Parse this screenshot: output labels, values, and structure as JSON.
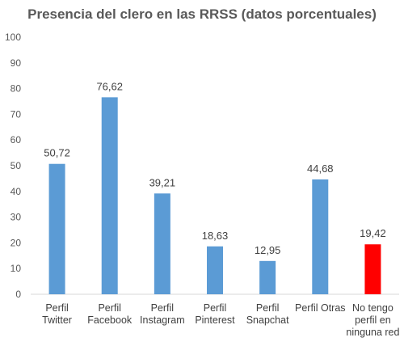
{
  "chart_data": {
    "type": "bar",
    "title": "Presencia del clero en las RRSS (datos porcentuales)",
    "categories": [
      [
        "Perfil",
        "Twitter"
      ],
      [
        "Perfil",
        "Facebook"
      ],
      [
        "Perfil",
        "Instagram"
      ],
      [
        "Perfil",
        "Pinterest"
      ],
      [
        "Perfil",
        "Snapchat"
      ],
      [
        "Perfil Otras"
      ],
      [
        "No tengo",
        "perfil en",
        "ninguna red"
      ]
    ],
    "values": [
      50.72,
      76.62,
      39.21,
      18.63,
      12.95,
      44.68,
      19.42
    ],
    "data_labels": [
      "50,72",
      "76,62",
      "39,21",
      "18,63",
      "12,95",
      "44,68",
      "19,42"
    ],
    "colors": [
      "#5b9bd5",
      "#5b9bd5",
      "#5b9bd5",
      "#5b9bd5",
      "#5b9bd5",
      "#5b9bd5",
      "#ff0000"
    ],
    "ylim": [
      0,
      100
    ],
    "yticks": [
      0,
      10,
      20,
      30,
      40,
      50,
      60,
      70,
      80,
      90,
      100
    ],
    "grid": false,
    "legend": "none"
  }
}
